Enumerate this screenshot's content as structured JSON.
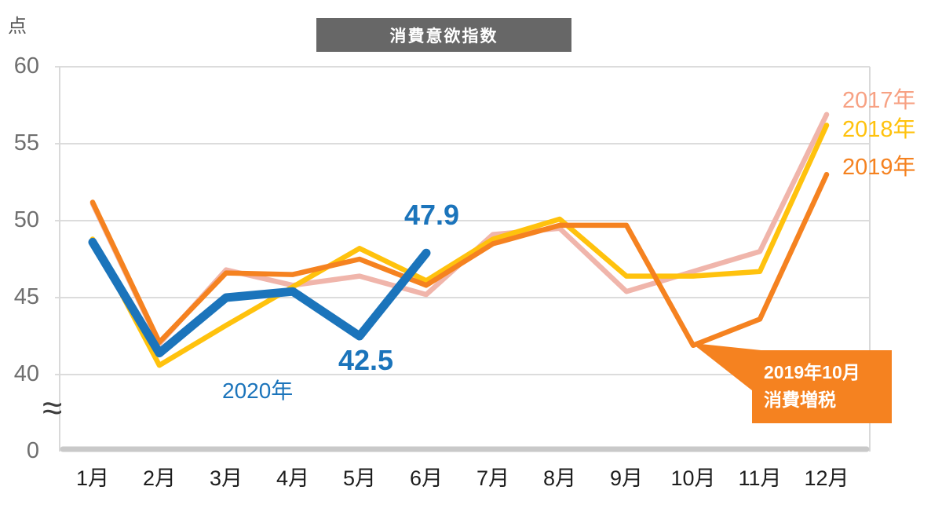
{
  "title": "消費意欲指数",
  "unit_label": "点",
  "axis_break_symbol": "≈",
  "colors": {
    "title_bg": "#676767",
    "title_text": "#ffffff",
    "grid": "#DCDCDC",
    "plot_border": "#D9D9D9",
    "axis_baseline": "#C9C9C9",
    "ytick_text": "#6F6F6F",
    "xtick_text": "#1d1d1d",
    "annotation_blue": "#1B74BB",
    "callout_bg": "#F58220"
  },
  "chart_data": {
    "type": "line",
    "title": "消費意欲指数",
    "ylabel": "点",
    "xlabel": "",
    "grid": true,
    "axis_break": true,
    "ylim_display": [
      40,
      60
    ],
    "yticks": [
      60,
      55,
      50,
      45,
      40,
      0
    ],
    "categories": [
      "1月",
      "2月",
      "3月",
      "4月",
      "5月",
      "6月",
      "7月",
      "8月",
      "9月",
      "10月",
      "11月",
      "12月"
    ],
    "legend_position": "right-of-line-ends",
    "series": [
      {
        "name": "2017年",
        "color": "#F0B5AB",
        "label_color": "#F7A183",
        "width": 6.5,
        "values": [
          51.1,
          42.0,
          46.8,
          45.8,
          46.4,
          45.2,
          49.1,
          49.5,
          45.4,
          46.7,
          48.0,
          56.9
        ]
      },
      {
        "name": "2018年",
        "color": "#FFC20D",
        "label_color": "#FFC20D",
        "width": 6.5,
        "values": [
          48.8,
          40.6,
          43.2,
          45.7,
          48.2,
          46.1,
          48.8,
          50.1,
          46.4,
          46.4,
          46.7,
          56.2
        ]
      },
      {
        "name": "2019年",
        "color": "#F58220",
        "label_color": "#F58220",
        "width": 6.5,
        "values": [
          51.2,
          42.1,
          46.6,
          46.5,
          47.5,
          45.8,
          48.5,
          49.7,
          49.7,
          41.9,
          43.6,
          53.0
        ]
      },
      {
        "name": "2020年",
        "color": "#1B74BB",
        "label_color": "#1B74BB",
        "width": 11,
        "values": [
          48.6,
          41.4,
          45.0,
          45.4,
          42.5,
          47.9
        ]
      }
    ],
    "annotations": [
      {
        "text": "47.9",
        "series": "2020年",
        "month": "6月",
        "position": "above-point"
      },
      {
        "text": "42.5",
        "series": "2020年",
        "month": "5月",
        "position": "below-point"
      },
      {
        "text": "2020年",
        "role": "series-label",
        "position": "below-line"
      }
    ],
    "callout": {
      "lines": [
        "2019年10月",
        "消費増税"
      ],
      "points_to": {
        "series": "2019年",
        "month": "10月",
        "value": 41.9
      },
      "bg_color": "#F58220",
      "text_color": "#ffffff"
    }
  }
}
